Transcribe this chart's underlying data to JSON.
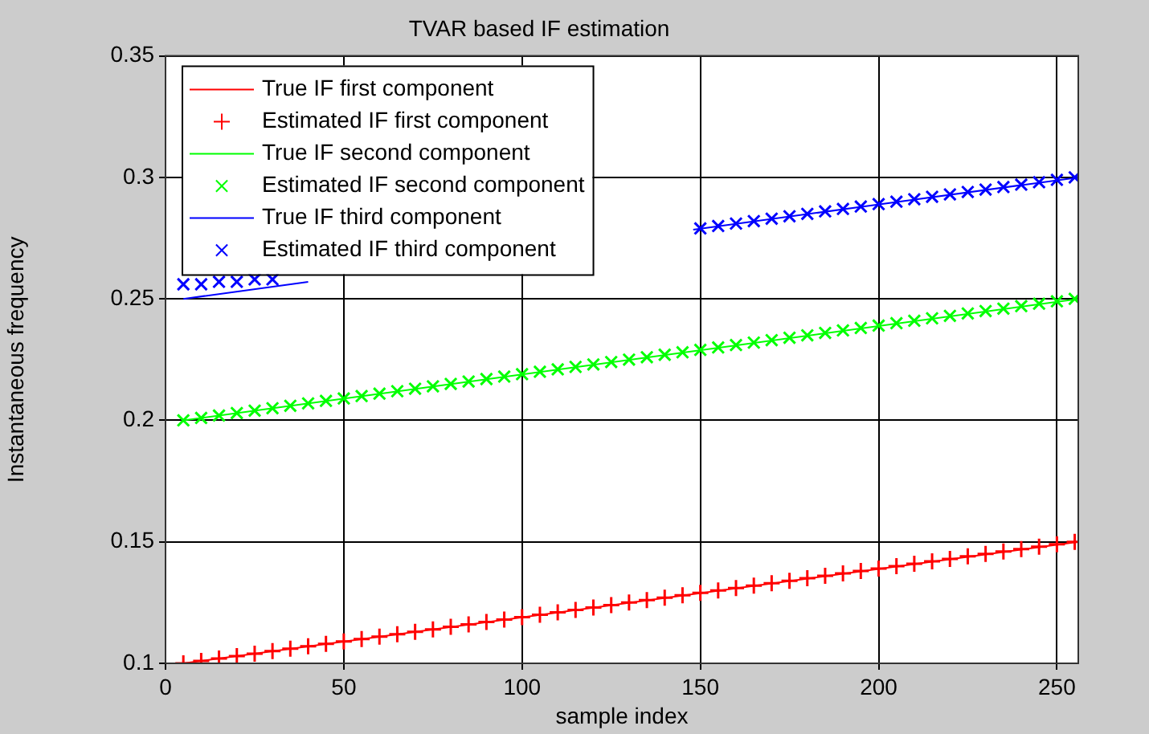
{
  "chart_data": {
    "type": "line",
    "title": "TVAR based IF estimation",
    "xlabel": "sample index",
    "ylabel": "Instantaneous frequency",
    "xlim": [
      0,
      256
    ],
    "xticks": [
      0,
      50,
      100,
      150,
      200,
      250
    ],
    "ylim": [
      0.1,
      0.35
    ],
    "yticks": [
      0.1,
      0.15,
      0.2,
      0.25,
      0.3,
      0.35
    ],
    "grid": true,
    "legend": "top left",
    "series": [
      {
        "name": "True IF first component",
        "type": "line",
        "color": "#ff0000",
        "marker": "none",
        "x": [
          5,
          256
        ],
        "values": [
          0.1,
          0.15
        ]
      },
      {
        "name": "Estimated IF first component",
        "type": "scatter",
        "color": "#ff0000",
        "marker": "plus",
        "x": [
          5,
          10,
          15,
          20,
          25,
          30,
          35,
          40,
          45,
          50,
          55,
          60,
          65,
          70,
          75,
          80,
          85,
          90,
          95,
          100,
          105,
          110,
          115,
          120,
          125,
          130,
          135,
          140,
          145,
          150,
          155,
          160,
          165,
          170,
          175,
          180,
          185,
          190,
          195,
          200,
          205,
          210,
          215,
          220,
          225,
          230,
          235,
          240,
          245,
          250,
          255
        ],
        "values": [
          0.1,
          0.101,
          0.102,
          0.103,
          0.104,
          0.105,
          0.106,
          0.107,
          0.108,
          0.109,
          0.11,
          0.111,
          0.112,
          0.113,
          0.114,
          0.115,
          0.116,
          0.117,
          0.118,
          0.119,
          0.12,
          0.121,
          0.122,
          0.123,
          0.124,
          0.125,
          0.126,
          0.127,
          0.128,
          0.129,
          0.13,
          0.131,
          0.132,
          0.133,
          0.134,
          0.135,
          0.136,
          0.137,
          0.138,
          0.139,
          0.14,
          0.141,
          0.142,
          0.143,
          0.144,
          0.145,
          0.146,
          0.147,
          0.148,
          0.149,
          0.15
        ]
      },
      {
        "name": "True IF second component",
        "type": "line",
        "color": "#00ff00",
        "marker": "none",
        "x": [
          5,
          256
        ],
        "values": [
          0.2,
          0.25
        ]
      },
      {
        "name": "Estimated IF second component",
        "type": "scatter",
        "color": "#00ff00",
        "marker": "cross",
        "x": [
          5,
          10,
          15,
          20,
          25,
          30,
          35,
          40,
          45,
          50,
          55,
          60,
          65,
          70,
          75,
          80,
          85,
          90,
          95,
          100,
          105,
          110,
          115,
          120,
          125,
          130,
          135,
          140,
          145,
          150,
          155,
          160,
          165,
          170,
          175,
          180,
          185,
          190,
          195,
          200,
          205,
          210,
          215,
          220,
          225,
          230,
          235,
          240,
          245,
          250,
          255
        ],
        "values": [
          0.2,
          0.201,
          0.202,
          0.203,
          0.204,
          0.205,
          0.206,
          0.207,
          0.208,
          0.209,
          0.21,
          0.211,
          0.212,
          0.213,
          0.214,
          0.215,
          0.216,
          0.217,
          0.218,
          0.219,
          0.22,
          0.221,
          0.222,
          0.223,
          0.224,
          0.225,
          0.226,
          0.227,
          0.228,
          0.229,
          0.23,
          0.231,
          0.232,
          0.233,
          0.234,
          0.235,
          0.236,
          0.237,
          0.238,
          0.239,
          0.24,
          0.241,
          0.242,
          0.243,
          0.244,
          0.245,
          0.246,
          0.247,
          0.248,
          0.249,
          0.25
        ]
      },
      {
        "name": "True IF third component",
        "type": "line",
        "color": "#0000ff",
        "marker": "none",
        "x": [
          5,
          40,
          100,
          148,
          256
        ],
        "values": [
          0.25,
          0.257,
          null,
          0.2785,
          0.3
        ]
      },
      {
        "name": "Estimated IF third component",
        "type": "scatter",
        "color": "#0000ff",
        "marker": "cross",
        "x": [
          5,
          10,
          15,
          20,
          25,
          30,
          150,
          155,
          160,
          165,
          170,
          175,
          180,
          185,
          190,
          195,
          200,
          205,
          210,
          215,
          220,
          225,
          230,
          235,
          240,
          245,
          250,
          255
        ],
        "values": [
          0.256,
          0.256,
          0.257,
          0.257,
          0.258,
          0.258,
          0.279,
          0.28,
          0.281,
          0.282,
          0.283,
          0.284,
          0.285,
          0.286,
          0.287,
          0.288,
          0.289,
          0.29,
          0.291,
          0.292,
          0.293,
          0.294,
          0.295,
          0.296,
          0.297,
          0.298,
          0.299,
          0.3
        ]
      }
    ]
  }
}
